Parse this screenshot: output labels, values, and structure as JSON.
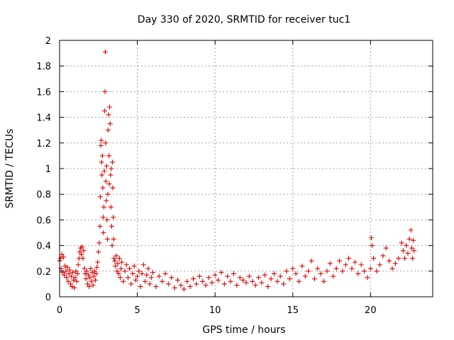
{
  "chart_data": {
    "type": "scatter",
    "title": "Day 330 of 2020, SRMTID for receiver tuc1",
    "xlabel": "GPS time / hours",
    "ylabel": "SRMTID / TECUs",
    "xlim": [
      0,
      24
    ],
    "ylim": [
      0,
      2
    ],
    "xticks": [
      0,
      5,
      10,
      15,
      20
    ],
    "xtick_labels": [
      "0",
      "5",
      "10",
      "15",
      "20"
    ],
    "yticks": [
      0,
      0.2,
      0.4,
      0.6,
      0.8,
      1,
      1.2,
      1.4,
      1.6,
      1.8,
      2
    ],
    "ytick_labels": [
      "0",
      "0.2",
      "0.4",
      "0.6",
      "0.8",
      "1",
      "1.2",
      "1.4",
      "1.6",
      "1.8",
      "2"
    ],
    "grid": true,
    "marker": "+",
    "colors": {
      "series": "#e00000",
      "grid": "#a0a0a0",
      "frame": "#000000"
    },
    "series": [
      {
        "name": "tuc1",
        "points": [
          [
            0.0,
            0.28
          ],
          [
            0.05,
            0.3
          ],
          [
            0.1,
            0.22
          ],
          [
            0.15,
            0.33
          ],
          [
            0.2,
            0.19
          ],
          [
            0.25,
            0.31
          ],
          [
            0.3,
            0.17
          ],
          [
            0.35,
            0.24
          ],
          [
            0.4,
            0.2
          ],
          [
            0.45,
            0.15
          ],
          [
            0.5,
            0.23
          ],
          [
            0.55,
            0.12
          ],
          [
            0.6,
            0.18
          ],
          [
            0.65,
            0.21
          ],
          [
            0.7,
            0.1
          ],
          [
            0.75,
            0.16
          ],
          [
            0.8,
            0.08
          ],
          [
            0.85,
            0.19
          ],
          [
            0.9,
            0.13
          ],
          [
            0.95,
            0.07
          ],
          [
            1.0,
            0.15
          ],
          [
            1.05,
            0.2
          ],
          [
            1.1,
            0.12
          ],
          [
            1.15,
            0.18
          ],
          [
            1.2,
            0.25
          ],
          [
            1.25,
            0.3
          ],
          [
            1.3,
            0.35
          ],
          [
            1.35,
            0.38
          ],
          [
            1.4,
            0.33
          ],
          [
            1.45,
            0.39
          ],
          [
            1.5,
            0.3
          ],
          [
            1.55,
            0.36
          ],
          [
            1.6,
            0.22
          ],
          [
            1.65,
            0.18
          ],
          [
            1.7,
            0.14
          ],
          [
            1.75,
            0.2
          ],
          [
            1.8,
            0.1
          ],
          [
            1.85,
            0.17
          ],
          [
            1.9,
            0.08
          ],
          [
            1.95,
            0.15
          ],
          [
            2.0,
            0.22
          ],
          [
            2.05,
            0.12
          ],
          [
            2.1,
            0.19
          ],
          [
            2.15,
            0.09
          ],
          [
            2.2,
            0.16
          ],
          [
            2.25,
            0.2
          ],
          [
            2.3,
            0.13
          ],
          [
            2.35,
            0.18
          ],
          [
            2.4,
            0.23
          ],
          [
            2.45,
            0.27
          ],
          [
            2.5,
            0.35
          ],
          [
            2.55,
            0.42
          ],
          [
            2.6,
            0.55
          ],
          [
            2.62,
            0.78
          ],
          [
            2.65,
            1.18
          ],
          [
            2.68,
            1.22
          ],
          [
            2.7,
            1.05
          ],
          [
            2.72,
            0.95
          ],
          [
            2.75,
            1.1
          ],
          [
            2.78,
            0.85
          ],
          [
            2.8,
            0.62
          ],
          [
            2.82,
            0.5
          ],
          [
            2.85,
            0.7
          ],
          [
            2.88,
            0.98
          ],
          [
            2.9,
            1.45
          ],
          [
            2.92,
            1.6
          ],
          [
            2.94,
            1.91
          ],
          [
            2.96,
            1.2
          ],
          [
            2.98,
            0.9
          ],
          [
            3.0,
            0.75
          ],
          [
            3.02,
            1.02
          ],
          [
            3.05,
            0.6
          ],
          [
            3.08,
            0.45
          ],
          [
            3.1,
            0.8
          ],
          [
            3.12,
            1.3
          ],
          [
            3.15,
            1.42
          ],
          [
            3.18,
            1.1
          ],
          [
            3.2,
            0.88
          ],
          [
            3.22,
            1.48
          ],
          [
            3.25,
            1.35
          ],
          [
            3.28,
            0.95
          ],
          [
            3.3,
            0.7
          ],
          [
            3.32,
            1.0
          ],
          [
            3.35,
            0.55
          ],
          [
            3.38,
            0.4
          ],
          [
            3.4,
            1.05
          ],
          [
            3.42,
            0.85
          ],
          [
            3.45,
            0.62
          ],
          [
            3.48,
            0.45
          ],
          [
            3.5,
            0.3
          ],
          [
            3.55,
            0.28
          ],
          [
            3.6,
            0.24
          ],
          [
            3.65,
            0.32
          ],
          [
            3.7,
            0.2
          ],
          [
            3.75,
            0.26
          ],
          [
            3.8,
            0.18
          ],
          [
            3.85,
            0.3
          ],
          [
            3.9,
            0.15
          ],
          [
            3.95,
            0.22
          ],
          [
            4.0,
            0.27
          ],
          [
            4.1,
            0.12
          ],
          [
            4.2,
            0.2
          ],
          [
            4.3,
            0.25
          ],
          [
            4.4,
            0.15
          ],
          [
            4.5,
            0.22
          ],
          [
            4.6,
            0.1
          ],
          [
            4.7,
            0.18
          ],
          [
            4.8,
            0.24
          ],
          [
            4.9,
            0.13
          ],
          [
            5.0,
            0.16
          ],
          [
            5.1,
            0.2
          ],
          [
            5.2,
            0.08
          ],
          [
            5.3,
            0.18
          ],
          [
            5.4,
            0.25
          ],
          [
            5.5,
            0.12
          ],
          [
            5.6,
            0.17
          ],
          [
            5.7,
            0.22
          ],
          [
            5.8,
            0.1
          ],
          [
            5.9,
            0.15
          ],
          [
            6.0,
            0.19
          ],
          [
            6.2,
            0.08
          ],
          [
            6.4,
            0.16
          ],
          [
            6.6,
            0.12
          ],
          [
            6.8,
            0.18
          ],
          [
            7.0,
            0.1
          ],
          [
            7.2,
            0.15
          ],
          [
            7.4,
            0.07
          ],
          [
            7.6,
            0.13
          ],
          [
            7.8,
            0.09
          ],
          [
            8.0,
            0.06
          ],
          [
            8.2,
            0.12
          ],
          [
            8.4,
            0.08
          ],
          [
            8.6,
            0.14
          ],
          [
            8.8,
            0.1
          ],
          [
            9.0,
            0.16
          ],
          [
            9.2,
            0.12
          ],
          [
            9.4,
            0.09
          ],
          [
            9.6,
            0.15
          ],
          [
            9.8,
            0.11
          ],
          [
            10.0,
            0.17
          ],
          [
            10.2,
            0.13
          ],
          [
            10.4,
            0.19
          ],
          [
            10.6,
            0.1
          ],
          [
            10.8,
            0.16
          ],
          [
            11.0,
            0.12
          ],
          [
            11.2,
            0.18
          ],
          [
            11.4,
            0.09
          ],
          [
            11.6,
            0.15
          ],
          [
            11.8,
            0.13
          ],
          [
            12.0,
            0.11
          ],
          [
            12.2,
            0.16
          ],
          [
            12.4,
            0.12
          ],
          [
            12.6,
            0.09
          ],
          [
            12.8,
            0.15
          ],
          [
            13.0,
            0.11
          ],
          [
            13.2,
            0.17
          ],
          [
            13.4,
            0.08
          ],
          [
            13.6,
            0.14
          ],
          [
            13.8,
            0.18
          ],
          [
            14.0,
            0.12
          ],
          [
            14.2,
            0.16
          ],
          [
            14.4,
            0.1
          ],
          [
            14.6,
            0.2
          ],
          [
            14.8,
            0.14
          ],
          [
            15.0,
            0.22
          ],
          [
            15.2,
            0.18
          ],
          [
            15.4,
            0.12
          ],
          [
            15.6,
            0.24
          ],
          [
            15.8,
            0.16
          ],
          [
            16.0,
            0.2
          ],
          [
            16.2,
            0.28
          ],
          [
            16.4,
            0.14
          ],
          [
            16.6,
            0.22
          ],
          [
            16.8,
            0.18
          ],
          [
            17.0,
            0.12
          ],
          [
            17.2,
            0.2
          ],
          [
            17.4,
            0.26
          ],
          [
            17.6,
            0.16
          ],
          [
            17.8,
            0.22
          ],
          [
            18.0,
            0.28
          ],
          [
            18.2,
            0.2
          ],
          [
            18.4,
            0.25
          ],
          [
            18.6,
            0.3
          ],
          [
            18.8,
            0.22
          ],
          [
            19.0,
            0.27
          ],
          [
            19.2,
            0.18
          ],
          [
            19.4,
            0.25
          ],
          [
            19.6,
            0.2
          ],
          [
            19.8,
            0.15
          ],
          [
            20.0,
            0.22
          ],
          [
            20.05,
            0.46
          ],
          [
            20.1,
            0.4
          ],
          [
            20.2,
            0.3
          ],
          [
            20.4,
            0.2
          ],
          [
            20.6,
            0.25
          ],
          [
            20.8,
            0.32
          ],
          [
            21.0,
            0.38
          ],
          [
            21.2,
            0.28
          ],
          [
            21.4,
            0.22
          ],
          [
            21.6,
            0.26
          ],
          [
            21.8,
            0.3
          ],
          [
            22.0,
            0.42
          ],
          [
            22.1,
            0.36
          ],
          [
            22.2,
            0.3
          ],
          [
            22.3,
            0.4
          ],
          [
            22.4,
            0.34
          ],
          [
            22.5,
            0.45
          ],
          [
            22.6,
            0.52
          ],
          [
            22.65,
            0.38
          ],
          [
            22.7,
            0.3
          ],
          [
            22.75,
            0.44
          ],
          [
            22.8,
            0.36
          ]
        ]
      }
    ]
  }
}
